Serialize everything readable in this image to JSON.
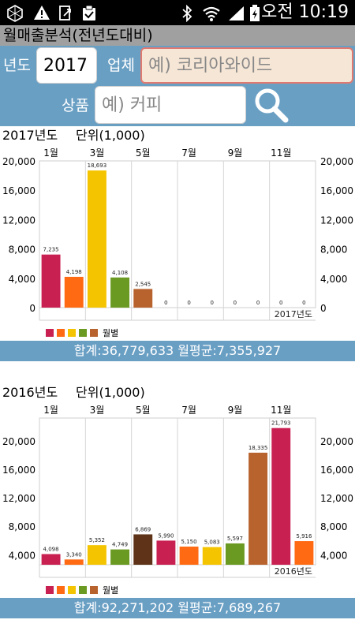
{
  "status_bar": {
    "time": "오전 10:19"
  },
  "title": "월매출분석(전년도대비)",
  "search": {
    "year_label": "년도",
    "year_value": "2017",
    "company_label": "업체",
    "company_placeholder": "예) 코리아와이드",
    "product_label": "상품",
    "product_placeholder": "예) 커피"
  },
  "charts": [
    {
      "heading": "2017년도",
      "unit": "단위(1,000)",
      "watermark": "2017년도",
      "legend_label": "월별",
      "summary": "합계:36,779,633  월평균:7,355,927"
    },
    {
      "heading": "2016년도",
      "unit": "단위(1,000)",
      "watermark": "2016년도",
      "legend_label": "월별",
      "summary": "합계:92,271,202  월평균:7,689,267"
    }
  ],
  "chart_data": [
    {
      "type": "bar",
      "title": "2017년도",
      "categories": [
        "1월",
        "2월",
        "3월",
        "4월",
        "5월",
        "6월",
        "7월",
        "8월",
        "9월",
        "10월",
        "11월",
        "12월"
      ],
      "x_tick_labels": [
        "1월",
        "3월",
        "5월",
        "7월",
        "9월",
        "11월"
      ],
      "values": [
        7235,
        4198,
        18693,
        4108,
        2545,
        0,
        0,
        0,
        0,
        0,
        0,
        0
      ],
      "value_labels": [
        "7,235",
        "4,198",
        "18,693",
        "4,108",
        "2,545",
        "0",
        "0",
        "0",
        "0",
        "0",
        "0",
        "0"
      ],
      "ylim": [
        0,
        20000
      ],
      "y_ticks": [
        0,
        4000,
        8000,
        12000,
        16000,
        20000
      ],
      "y_tick_labels": [
        "0",
        "4,000",
        "8,000",
        "12,000",
        "16,000",
        "20,000"
      ],
      "colors": [
        "#c92052",
        "#ff6a13",
        "#f5c400",
        "#6a9a22",
        "#b8622d",
        "#c92052",
        "#ff6a13",
        "#f5c400",
        "#6a9a22",
        "#b8622d",
        "#c92052",
        "#ff6a13"
      ],
      "grid": true,
      "legend": "bottom-left"
    },
    {
      "type": "bar",
      "title": "2016년도",
      "categories": [
        "1월",
        "2월",
        "3월",
        "4월",
        "5월",
        "6월",
        "7월",
        "8월",
        "9월",
        "10월",
        "11월",
        "12월"
      ],
      "x_tick_labels": [
        "1월",
        "3월",
        "5월",
        "7월",
        "9월",
        "11월"
      ],
      "values": [
        4098,
        3340,
        5352,
        4749,
        6869,
        5990,
        5150,
        5083,
        5597,
        18335,
        21793,
        5916
      ],
      "value_labels": [
        "4,098",
        "3,340",
        "5,352",
        "4,749",
        "6,869",
        "5,990",
        "5,150",
        "5,083",
        "5,597",
        "18,335",
        "21,793",
        "5,916"
      ],
      "ylim": [
        2600,
        23200
      ],
      "y_ticks": [
        4000,
        8000,
        12000,
        16000,
        20000
      ],
      "y_tick_labels": [
        "4,000",
        "8,000",
        "12,000",
        "16,000",
        "20,000"
      ],
      "colors": [
        "#c92052",
        "#ff6a13",
        "#f5c400",
        "#6a9a22",
        "#5e3317",
        "#c92052",
        "#ff6a13",
        "#f5c400",
        "#6a9a22",
        "#b8622d",
        "#c92052",
        "#ff6a13"
      ],
      "grid": true,
      "legend": "bottom-left"
    }
  ],
  "legend_swatches": [
    "#c92052",
    "#ff6a13",
    "#f5c400",
    "#6a9a22",
    "#b8622d"
  ]
}
